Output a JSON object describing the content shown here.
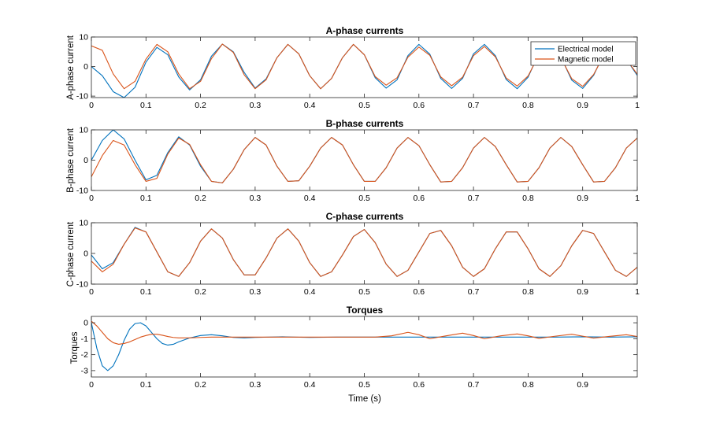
{
  "figure": {
    "background": "#ffffff",
    "axis_color": "#262626"
  },
  "legend": {
    "entries": [
      {
        "label": "Electrical model",
        "color": "#0072BD"
      },
      {
        "label": "Magnetic model",
        "color": "#D95319"
      }
    ],
    "placement": "top-right of first subplot"
  },
  "chart_data": [
    {
      "type": "line",
      "title": "A-phase currents",
      "xlabel": "",
      "ylabel": "A-phase current",
      "xlim": [
        0,
        1
      ],
      "ylim": [
        -10.5,
        10
      ],
      "xticks": [
        0,
        0.1,
        0.2,
        0.3,
        0.4,
        0.5,
        0.6,
        0.7,
        0.8,
        0.9,
        1
      ],
      "xtick_labels": [
        "0",
        "0.1",
        "0.2",
        "0.3",
        "0.4",
        "0.5",
        "0.6",
        "0.7",
        "0.8",
        "0.9",
        "1"
      ],
      "yticks": [
        -10,
        0,
        10
      ],
      "ytick_labels": [
        "-10",
        "0",
        "10"
      ],
      "grid": false,
      "series": [
        {
          "name": "Electrical model",
          "color": "#0072BD",
          "x": [
            0,
            0.02,
            0.04,
            0.06,
            0.08,
            0.1,
            0.12,
            0.14,
            0.16,
            0.18,
            0.2,
            0.22,
            0.24,
            0.26,
            0.28,
            0.3,
            0.32,
            0.34,
            0.36,
            0.38,
            0.4,
            0.42,
            0.44,
            0.46,
            0.48,
            0.5,
            0.52,
            0.54,
            0.56,
            0.58,
            0.6,
            0.62,
            0.64,
            0.66,
            0.68,
            0.7,
            0.72,
            0.74,
            0.76,
            0.78,
            0.8,
            0.82,
            0.84,
            0.86,
            0.88,
            0.9,
            0.92,
            0.94,
            0.96,
            0.98,
            1
          ],
          "y": [
            0.0,
            -3.1,
            -8.5,
            -10.5,
            -7.0,
            1.5,
            6.5,
            4.0,
            -3.5,
            -7.9,
            -4.5,
            3.5,
            7.6,
            5.0,
            -2.0,
            -7.3,
            -4.2,
            3.0,
            7.5,
            4.3,
            -3.1,
            -7.5,
            -4.0,
            3.0,
            7.5,
            4.0,
            -3.8,
            -7.3,
            -4.5,
            3.7,
            7.5,
            4.2,
            -4.0,
            -7.4,
            -4.0,
            4.3,
            7.5,
            3.7,
            -4.4,
            -7.5,
            -3.6,
            4.5,
            7.4,
            3.3,
            -4.6,
            -7.4,
            -3.0,
            4.8,
            6.6,
            2.5,
            -3.0
          ]
        },
        {
          "name": "Magnetic model",
          "color": "#D95319",
          "x": [
            0,
            0.02,
            0.04,
            0.06,
            0.08,
            0.1,
            0.12,
            0.14,
            0.16,
            0.18,
            0.2,
            0.22,
            0.24,
            0.26,
            0.28,
            0.3,
            0.32,
            0.34,
            0.36,
            0.38,
            0.4,
            0.42,
            0.44,
            0.46,
            0.48,
            0.5,
            0.52,
            0.54,
            0.56,
            0.58,
            0.6,
            0.62,
            0.64,
            0.66,
            0.68,
            0.7,
            0.72,
            0.74,
            0.76,
            0.78,
            0.8,
            0.82,
            0.84,
            0.86,
            0.88,
            0.9,
            0.92,
            0.94,
            0.96,
            0.98,
            1
          ],
          "y": [
            7.0,
            5.5,
            -2.5,
            -7.5,
            -5.0,
            2.5,
            7.5,
            5.0,
            -2.5,
            -7.5,
            -5.0,
            2.7,
            7.6,
            4.8,
            -2.8,
            -7.5,
            -4.5,
            3.0,
            7.5,
            4.3,
            -3.1,
            -7.5,
            -4.0,
            3.0,
            7.5,
            4.0,
            -3.4,
            -6.3,
            -3.8,
            3.2,
            6.6,
            3.8,
            -3.5,
            -6.5,
            -3.6,
            3.7,
            6.8,
            3.3,
            -3.9,
            -6.6,
            -3.2,
            4.0,
            6.8,
            3.0,
            -4.1,
            -6.7,
            -2.7,
            4.2,
            6.4,
            2.5,
            -2.6
          ]
        }
      ]
    },
    {
      "type": "line",
      "title": "B-phase currents",
      "xlabel": "",
      "ylabel": "B-phase current",
      "xlim": [
        0,
        1
      ],
      "ylim": [
        -10,
        10
      ],
      "xticks": [
        0,
        0.1,
        0.2,
        0.3,
        0.4,
        0.5,
        0.6,
        0.7,
        0.8,
        0.9,
        1
      ],
      "xtick_labels": [
        "0",
        "0.1",
        "0.2",
        "0.3",
        "0.4",
        "0.5",
        "0.6",
        "0.7",
        "0.8",
        "0.9",
        "1"
      ],
      "yticks": [
        -10,
        0,
        10
      ],
      "ytick_labels": [
        "-10",
        "0",
        "10"
      ],
      "grid": false,
      "series": [
        {
          "name": "Electrical model",
          "color": "#0072BD",
          "x": [
            0,
            0.02,
            0.04,
            0.06,
            0.08,
            0.1,
            0.12,
            0.14,
            0.16,
            0.18,
            0.2,
            0.22,
            0.24,
            0.26,
            0.28,
            0.3,
            0.32,
            0.34,
            0.36,
            0.38,
            0.4,
            0.42,
            0.44,
            0.46,
            0.48,
            0.5,
            0.52,
            0.54,
            0.56,
            0.58,
            0.6,
            0.62,
            0.64,
            0.66,
            0.68,
            0.7,
            0.72,
            0.74,
            0.76,
            0.78,
            0.8,
            0.82,
            0.84,
            0.86,
            0.88,
            0.9,
            0.92,
            0.94,
            0.96,
            0.98,
            1
          ],
          "y": [
            0.0,
            6.5,
            10.0,
            7.0,
            0.0,
            -6.5,
            -5.0,
            2.5,
            7.7,
            5.0,
            -2.0,
            -7.0,
            -7.5,
            -3.0,
            3.5,
            7.5,
            5.0,
            -2.0,
            -7.0,
            -6.8,
            -2.0,
            4.0,
            7.5,
            5.0,
            -1.5,
            -7.0,
            -7.0,
            -2.5,
            4.0,
            7.5,
            4.8,
            -1.5,
            -7.2,
            -7.0,
            -2.5,
            4.0,
            7.5,
            4.5,
            -1.5,
            -7.2,
            -7.0,
            -2.5,
            4.0,
            7.5,
            4.5,
            -1.5,
            -7.2,
            -7.0,
            -2.5,
            4.0,
            7.3
          ]
        },
        {
          "name": "Magnetic model",
          "color": "#D95319",
          "x": [
            0,
            0.02,
            0.04,
            0.06,
            0.08,
            0.1,
            0.12,
            0.14,
            0.16,
            0.18,
            0.2,
            0.22,
            0.24,
            0.26,
            0.28,
            0.3,
            0.32,
            0.34,
            0.36,
            0.38,
            0.4,
            0.42,
            0.44,
            0.46,
            0.48,
            0.5,
            0.52,
            0.54,
            0.56,
            0.58,
            0.6,
            0.62,
            0.64,
            0.66,
            0.68,
            0.7,
            0.72,
            0.74,
            0.76,
            0.78,
            0.8,
            0.82,
            0.84,
            0.86,
            0.88,
            0.9,
            0.92,
            0.94,
            0.96,
            0.98,
            1
          ],
          "y": [
            -5.5,
            1.5,
            6.5,
            5.0,
            -1.5,
            -7.0,
            -6.0,
            2.0,
            7.3,
            5.2,
            -1.5,
            -7.0,
            -7.5,
            -3.0,
            3.5,
            7.5,
            5.0,
            -2.0,
            -7.0,
            -6.8,
            -2.0,
            4.0,
            7.5,
            5.0,
            -1.5,
            -7.0,
            -7.0,
            -2.5,
            4.0,
            7.5,
            4.8,
            -1.5,
            -7.2,
            -7.0,
            -2.5,
            4.0,
            7.5,
            4.5,
            -1.5,
            -7.2,
            -7.0,
            -2.5,
            4.0,
            7.5,
            4.5,
            -1.5,
            -7.2,
            -7.0,
            -2.5,
            4.0,
            7.3
          ]
        }
      ]
    },
    {
      "type": "line",
      "title": "C-phase currents",
      "xlabel": "",
      "ylabel": "C-phase current",
      "xlim": [
        0,
        1
      ],
      "ylim": [
        -10,
        10
      ],
      "xticks": [
        0,
        0.1,
        0.2,
        0.3,
        0.4,
        0.5,
        0.6,
        0.7,
        0.8,
        0.9,
        1
      ],
      "xtick_labels": [
        "0",
        "0.1",
        "0.2",
        "0.3",
        "0.4",
        "0.5",
        "0.6",
        "0.7",
        "0.8",
        "0.9",
        "1"
      ],
      "yticks": [
        -10,
        0,
        10
      ],
      "ytick_labels": [
        "-10",
        "0",
        "10"
      ],
      "grid": false,
      "series": [
        {
          "name": "Electrical model",
          "color": "#0072BD",
          "x": [
            0,
            0.02,
            0.04,
            0.06,
            0.08,
            0.1,
            0.12,
            0.14,
            0.16,
            0.18,
            0.2,
            0.22,
            0.24,
            0.26,
            0.28,
            0.3,
            0.32,
            0.34,
            0.36,
            0.38,
            0.4,
            0.42,
            0.44,
            0.46,
            0.48,
            0.5,
            0.52,
            0.54,
            0.56,
            0.58,
            0.6,
            0.62,
            0.64,
            0.66,
            0.68,
            0.7,
            0.72,
            0.74,
            0.76,
            0.78,
            0.8,
            0.82,
            0.84,
            0.86,
            0.88,
            0.9,
            0.92,
            0.94,
            0.96,
            0.98,
            1
          ],
          "y": [
            -0.5,
            -5.0,
            -3.0,
            3.0,
            8.5,
            7.0,
            0.5,
            -6.0,
            -7.5,
            -3.0,
            4.0,
            8.0,
            5.0,
            -2.0,
            -7.0,
            -7.0,
            -1.5,
            5.0,
            8.0,
            4.0,
            -3.0,
            -7.5,
            -6.0,
            -0.5,
            5.5,
            7.8,
            3.5,
            -3.5,
            -7.5,
            -5.5,
            0.5,
            6.5,
            7.5,
            2.5,
            -4.5,
            -7.5,
            -5.0,
            1.5,
            7.0,
            7.0,
            1.5,
            -5.0,
            -7.5,
            -4.0,
            2.5,
            7.5,
            6.5,
            0.5,
            -5.5,
            -7.5,
            -4.5
          ]
        },
        {
          "name": "Magnetic model",
          "color": "#D95319",
          "x": [
            0,
            0.02,
            0.04,
            0.06,
            0.08,
            0.1,
            0.12,
            0.14,
            0.16,
            0.18,
            0.2,
            0.22,
            0.24,
            0.26,
            0.28,
            0.3,
            0.32,
            0.34,
            0.36,
            0.38,
            0.4,
            0.42,
            0.44,
            0.46,
            0.48,
            0.5,
            0.52,
            0.54,
            0.56,
            0.58,
            0.6,
            0.62,
            0.64,
            0.66,
            0.68,
            0.7,
            0.72,
            0.74,
            0.76,
            0.78,
            0.8,
            0.82,
            0.84,
            0.86,
            0.88,
            0.9,
            0.92,
            0.94,
            0.96,
            0.98,
            1
          ],
          "y": [
            -2.5,
            -6.0,
            -3.5,
            3.0,
            8.3,
            7.0,
            0.5,
            -6.0,
            -7.5,
            -3.0,
            4.0,
            8.0,
            5.0,
            -2.0,
            -7.0,
            -7.0,
            -1.5,
            5.0,
            8.0,
            4.0,
            -3.0,
            -7.5,
            -6.0,
            -0.5,
            5.5,
            7.8,
            3.5,
            -3.5,
            -7.5,
            -5.5,
            0.5,
            6.5,
            7.5,
            2.5,
            -4.5,
            -7.5,
            -5.0,
            1.5,
            7.0,
            7.0,
            1.5,
            -5.0,
            -7.5,
            -4.0,
            2.5,
            7.5,
            6.5,
            0.5,
            -5.5,
            -7.5,
            -4.5
          ]
        }
      ]
    },
    {
      "type": "line",
      "title": "Torques",
      "xlabel": "Time (s)",
      "ylabel": "Torques",
      "xlim": [
        0,
        1
      ],
      "ylim": [
        -3.4,
        0.4
      ],
      "xticks": [
        0,
        0.1,
        0.2,
        0.3,
        0.4,
        0.5,
        0.6,
        0.7,
        0.8,
        0.9
      ],
      "xtick_labels": [
        "0",
        "0.1",
        "0.2",
        "0.3",
        "0.4",
        "0.5",
        "0.6",
        "0.7",
        "0.8",
        "0.9"
      ],
      "yticks": [
        0,
        -1,
        -2,
        -3
      ],
      "ytick_labels": [
        "0",
        "-1",
        "-2",
        "-3"
      ],
      "grid": false,
      "series": [
        {
          "name": "Electrical model",
          "color": "#0072BD",
          "x": [
            0,
            0.01,
            0.02,
            0.03,
            0.04,
            0.05,
            0.06,
            0.07,
            0.08,
            0.09,
            0.1,
            0.11,
            0.12,
            0.13,
            0.14,
            0.15,
            0.16,
            0.18,
            0.2,
            0.22,
            0.24,
            0.26,
            0.28,
            0.3,
            0.35,
            0.4,
            0.45,
            0.5,
            0.55,
            0.6,
            0.65,
            0.7,
            0.75,
            0.8,
            0.85,
            0.9,
            0.95,
            1
          ],
          "y": [
            0.0,
            -1.6,
            -2.7,
            -3.0,
            -2.7,
            -2.0,
            -1.1,
            -0.4,
            -0.05,
            0.0,
            -0.2,
            -0.6,
            -1.0,
            -1.3,
            -1.4,
            -1.35,
            -1.2,
            -0.95,
            -0.8,
            -0.75,
            -0.82,
            -0.92,
            -0.95,
            -0.92,
            -0.88,
            -0.92,
            -0.9,
            -0.9,
            -0.9,
            -0.9,
            -0.9,
            -0.9,
            -0.9,
            -0.9,
            -0.9,
            -0.88,
            -0.9,
            -0.88
          ]
        },
        {
          "name": "Magnetic model",
          "color": "#D95319",
          "x": [
            0,
            0.01,
            0.02,
            0.03,
            0.04,
            0.05,
            0.06,
            0.07,
            0.08,
            0.09,
            0.1,
            0.11,
            0.12,
            0.13,
            0.14,
            0.15,
            0.16,
            0.18,
            0.2,
            0.22,
            0.24,
            0.26,
            0.28,
            0.3,
            0.35,
            0.4,
            0.45,
            0.5,
            0.52,
            0.55,
            0.58,
            0.6,
            0.62,
            0.65,
            0.68,
            0.7,
            0.72,
            0.75,
            0.78,
            0.8,
            0.82,
            0.85,
            0.88,
            0.9,
            0.92,
            0.95,
            0.98,
            1
          ],
          "y": [
            0.1,
            -0.2,
            -0.6,
            -1.0,
            -1.25,
            -1.35,
            -1.3,
            -1.2,
            -1.05,
            -0.9,
            -0.8,
            -0.72,
            -0.72,
            -0.78,
            -0.86,
            -0.92,
            -0.95,
            -0.95,
            -0.92,
            -0.9,
            -0.9,
            -0.9,
            -0.9,
            -0.9,
            -0.9,
            -0.9,
            -0.9,
            -0.9,
            -0.9,
            -0.82,
            -0.6,
            -0.75,
            -1.0,
            -0.82,
            -0.65,
            -0.8,
            -1.0,
            -0.82,
            -0.7,
            -0.82,
            -0.98,
            -0.84,
            -0.72,
            -0.84,
            -0.96,
            -0.85,
            -0.75,
            -0.86
          ]
        }
      ]
    }
  ]
}
